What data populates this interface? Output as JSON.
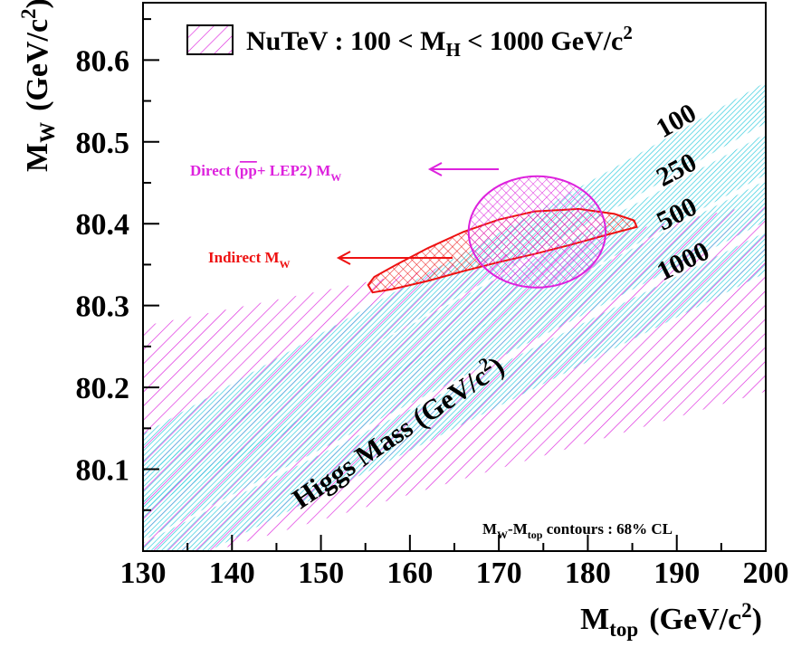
{
  "chart_data": {
    "type": "scatter",
    "xlabel": {
      "main": "M",
      "sub": "top",
      "unit": "(GeV/c",
      "sup": "2",
      "close": ")"
    },
    "ylabel": {
      "main": "M",
      "sub": "W",
      "unit": "(GeV/c",
      "sup": "2",
      "close": ")"
    },
    "xlim": [
      130,
      200
    ],
    "ylim": [
      80.0,
      80.67
    ],
    "xticks": [
      130,
      140,
      150,
      160,
      170,
      180,
      190,
      200
    ],
    "xtick_labels": [
      "130",
      "140",
      "150",
      "160",
      "170",
      "180",
      "190",
      "200"
    ],
    "yticks": [
      80.1,
      80.2,
      80.3,
      80.4,
      80.5,
      80.6
    ],
    "ytick_labels": [
      "80.1",
      "80.2",
      "80.3",
      "80.4",
      "80.5",
      "80.6"
    ],
    "grid": false,
    "legend": {
      "placement": "top",
      "label_prefix": "NuTeV : 100 < M",
      "label_sub": "H",
      "label_suffix": " < 1000 GeV/c",
      "label_sup": "2"
    },
    "nutev_band": {
      "name": "NuTeV : 100 < M_H < 1000 GeV/c^2",
      "color": "#dd22dd",
      "upper": [
        [
          130,
          80.275
        ],
        [
          200,
          80.425
        ]
      ],
      "lower": [
        [
          130,
          79.975
        ],
        [
          200,
          80.195
        ]
      ]
    },
    "higgs_bands": [
      {
        "label": "100",
        "color": "#33ccdd",
        "center": [
          [
            130,
            80.118
          ],
          [
            200,
            80.548
          ]
        ],
        "half_width": 0.025
      },
      {
        "label": "250",
        "color": "#33ccdd",
        "center": [
          [
            130,
            80.075
          ],
          [
            200,
            80.485
          ]
        ],
        "half_width": 0.025
      },
      {
        "label": "500",
        "color": "#33ccdd",
        "center": [
          [
            130,
            80.038
          ],
          [
            200,
            80.428
          ]
        ],
        "half_width": 0.025
      },
      {
        "label": "1000",
        "color": "#33ccdd",
        "center": [
          [
            130,
            79.985
          ],
          [
            200,
            80.365
          ]
        ],
        "half_width": 0.025
      }
    ],
    "direct_contour": {
      "name": "Direct (pp+ LEP2) M_W",
      "color": "#dd22dd",
      "center": [
        174.3,
        80.39
      ],
      "rx": 7.7,
      "ry": 0.068
    },
    "indirect_contour": {
      "name": "Indirect M_W",
      "color": "#ee1111",
      "outline": [
        [
          155.3,
          80.325
        ],
        [
          155.8,
          80.316
        ],
        [
          158,
          80.32
        ],
        [
          162,
          80.33
        ],
        [
          166,
          80.342
        ],
        [
          170,
          80.353
        ],
        [
          174,
          80.363
        ],
        [
          178,
          80.374
        ],
        [
          182,
          80.386
        ],
        [
          185.5,
          80.396
        ],
        [
          185.2,
          80.404
        ],
        [
          183,
          80.412
        ],
        [
          179,
          80.418
        ],
        [
          174,
          80.415
        ],
        [
          170,
          80.405
        ],
        [
          166,
          80.39
        ],
        [
          162,
          80.37
        ],
        [
          158.5,
          80.35
        ],
        [
          156,
          80.335
        ],
        [
          155.3,
          80.325
        ]
      ]
    },
    "annotations": {
      "direct_text": "Direct (",
      "direct_pp": "pp",
      "direct_text2": "+ LEP2)  M",
      "direct_sub": "W",
      "indirect_text": "Indirect M",
      "indirect_sub": "W",
      "higgs_title": "Higgs Mass (GeV/c",
      "higgs_title_sup": "2",
      "higgs_title_close": ")",
      "contours_note_main": "M",
      "contours_note_sub1": "W",
      "contours_note_mid": "-M",
      "contours_note_sub2": "top",
      "contours_note_end": " contours : 68% CL"
    }
  }
}
